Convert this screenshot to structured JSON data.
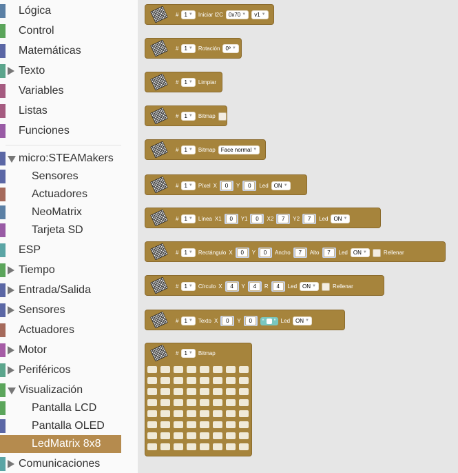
{
  "sidebar": {
    "categories": [
      {
        "label": "Lógica",
        "color": "#5b80a5",
        "arrow": ""
      },
      {
        "label": "Control",
        "color": "#5ba55b",
        "arrow": ""
      },
      {
        "label": "Matemáticas",
        "color": "#5b67a5",
        "arrow": ""
      },
      {
        "label": "Texto",
        "color": "#5ba58c",
        "arrow": "right"
      },
      {
        "label": "Variables",
        "color": "#a55b80",
        "arrow": ""
      },
      {
        "label": "Listas",
        "color": "#a55b80",
        "arrow": ""
      },
      {
        "label": "Funciones",
        "color": "#995ba5",
        "arrow": ""
      },
      {
        "label": "micro:STEAMakers",
        "color": "#5b67a5",
        "arrow": "down"
      },
      {
        "label": "Sensores",
        "color": "#5b67a5",
        "arrow": "",
        "sub": true
      },
      {
        "label": "Actuadores",
        "color": "#a56a5b",
        "arrow": "",
        "sub": true
      },
      {
        "label": "NeoMatrix",
        "color": "#5b80a5",
        "arrow": "",
        "sub": true
      },
      {
        "label": "Tarjeta SD",
        "color": "#995ba5",
        "arrow": "",
        "sub": true
      },
      {
        "label": "ESP",
        "color": "#5ba5a5",
        "arrow": ""
      },
      {
        "label": "Tiempo",
        "color": "#5ba55b",
        "arrow": "right"
      },
      {
        "label": "Entrada/Salida",
        "color": "#5b67a5",
        "arrow": "right"
      },
      {
        "label": "Sensores",
        "color": "#5b67a5",
        "arrow": "right"
      },
      {
        "label": "Actuadores",
        "color": "#a56a5b",
        "arrow": ""
      },
      {
        "label": "Motor",
        "color": "#a55ba5",
        "arrow": "right"
      },
      {
        "label": "Periféricos",
        "color": "#5ba58c",
        "arrow": "right"
      },
      {
        "label": "Visualización",
        "color": "#5ba55b",
        "arrow": "down"
      },
      {
        "label": "Pantalla LCD",
        "color": "#5ba55b",
        "arrow": "",
        "sub": true
      },
      {
        "label": "Pantalla OLED",
        "color": "#5b67a5",
        "arrow": "",
        "sub": true
      },
      {
        "label": "LedMatrix 8x8",
        "color": "#b58b4e",
        "arrow": "",
        "sub": true,
        "selected": true
      },
      {
        "label": "Comunicaciones",
        "color": "#5ba5a5",
        "arrow": "right"
      }
    ]
  },
  "blocks": {
    "init": {
      "hash": "#",
      "num": "1",
      "label": "Iniciar I2C",
      "addr": "0x70",
      "ver": "v1"
    },
    "rotation": {
      "hash": "#",
      "num": "1",
      "label": "Rotación",
      "value": "0º"
    },
    "clear": {
      "hash": "#",
      "num": "1",
      "label": "Limpiar"
    },
    "bitmap_small": {
      "hash": "#",
      "num": "1",
      "label": "Bitmap"
    },
    "bitmap_face": {
      "hash": "#",
      "num": "1",
      "label": "Bitmap",
      "value": "Face normal"
    },
    "pixel": {
      "hash": "#",
      "num": "1",
      "label": "Píxel",
      "x_label": "X",
      "x": "0",
      "y_label": "Y",
      "y": "0",
      "led_label": "Led",
      "led": "ON"
    },
    "line": {
      "hash": "#",
      "num": "1",
      "label": "Línea",
      "x1_label": "X1",
      "x1": "0",
      "y1_label": "Y1",
      "y1": "0",
      "x2_label": "X2",
      "x2": "7",
      "y2_label": "Y2",
      "y2": "7",
      "led_label": "Led",
      "led": "ON"
    },
    "rect": {
      "hash": "#",
      "num": "1",
      "label": "Rectángulo",
      "x_label": "X",
      "x": "0",
      "y_label": "Y",
      "y": "0",
      "w_label": "Ancho",
      "w": "7",
      "h_label": "Alto",
      "h": "7",
      "led_label": "Led",
      "led": "ON",
      "fill_label": "Rellenar"
    },
    "circle": {
      "hash": "#",
      "num": "1",
      "label": "Círculo",
      "x_label": "X",
      "x": "4",
      "y_label": "Y",
      "y": "4",
      "r_label": "R",
      "r": "4",
      "led_label": "Led",
      "led": "ON",
      "fill_label": "Rellenar"
    },
    "text": {
      "hash": "#",
      "num": "1",
      "label": "Texto",
      "x_label": "X",
      "x": "0",
      "y_label": "Y",
      "y": "0",
      "q_open": "“",
      "q_close": "”",
      "led_label": "Led",
      "led": "ON"
    },
    "bitmap_grid": {
      "hash": "#",
      "num": "1",
      "label": "Bitmap",
      "rows": 8,
      "cols": 8
    }
  },
  "colors": {
    "block": "#a6843c",
    "selected": "#b58b4e"
  }
}
